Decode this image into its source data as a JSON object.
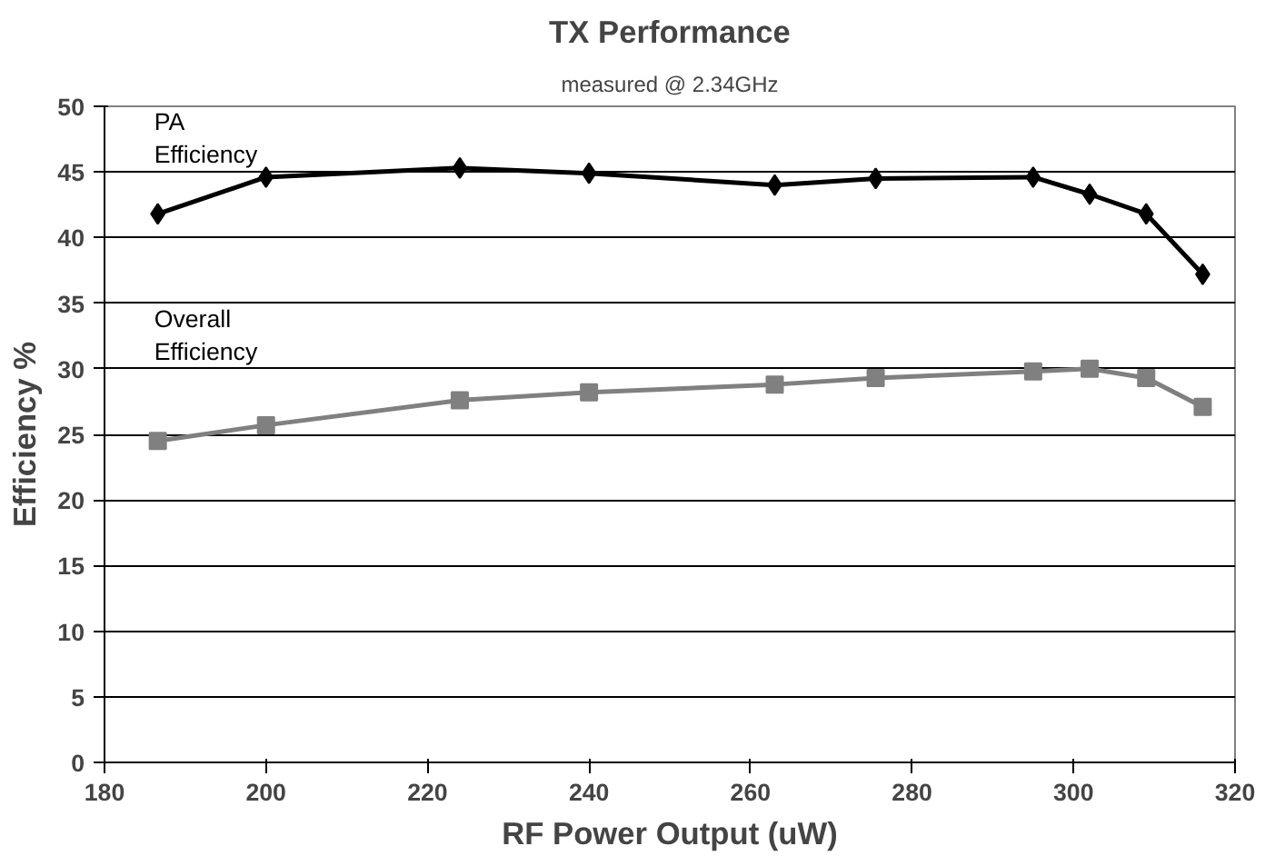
{
  "chart_data": {
    "type": "line",
    "title": "TX Performance",
    "subtitle": "measured @ 2.34GHz",
    "xlabel": "RF Power Output (uW)",
    "ylabel": "Efficiency %",
    "xlim": [
      180,
      320
    ],
    "xticks": [
      180,
      200,
      220,
      240,
      260,
      280,
      300,
      320
    ],
    "ylim": [
      0,
      50
    ],
    "yticks": [
      0,
      5,
      10,
      15,
      20,
      25,
      30,
      35,
      40,
      45,
      50
    ],
    "grid": "y",
    "series": [
      {
        "name": "PA\nEfficiency",
        "color": "#000000",
        "marker": "diamond",
        "x": [
          186.6,
          200,
          224,
          240,
          263,
          275.5,
          295,
          302,
          309,
          316
        ],
        "values": [
          41.8,
          44.6,
          45.3,
          44.9,
          44.0,
          44.5,
          44.6,
          43.3,
          41.8,
          37.2
        ]
      },
      {
        "name": "Overall\nEfficiency",
        "color": "#808080",
        "marker": "square",
        "x": [
          186.6,
          200,
          224,
          240,
          263,
          275.5,
          295,
          302,
          309,
          316
        ],
        "values": [
          24.5,
          25.7,
          27.6,
          28.2,
          28.8,
          29.3,
          29.8,
          30.0,
          29.3,
          27.1
        ]
      }
    ]
  }
}
